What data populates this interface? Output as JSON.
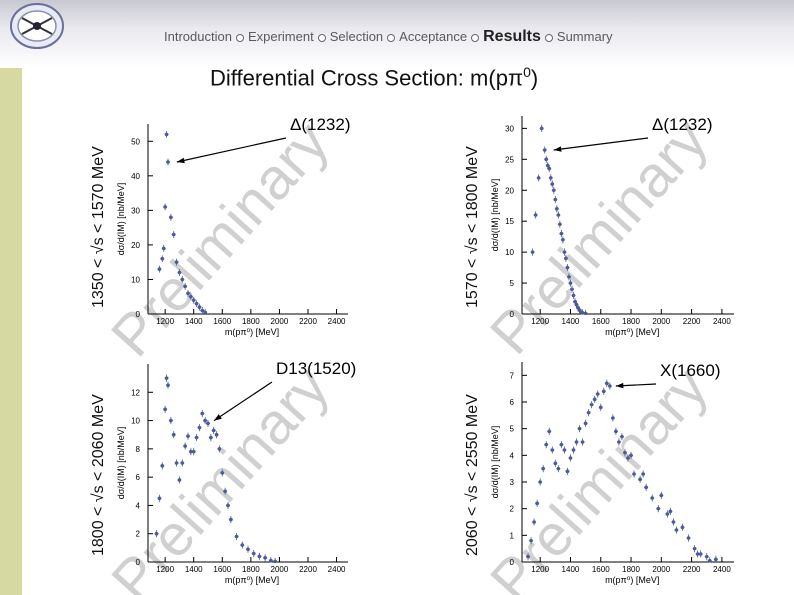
{
  "header": {
    "nav": [
      {
        "label": "Introduction",
        "active": false
      },
      {
        "label": "Experiment",
        "active": false
      },
      {
        "label": "Selection",
        "active": false
      },
      {
        "label": "Acceptance",
        "active": false
      },
      {
        "label": "Results",
        "active": true
      },
      {
        "label": "Summary",
        "active": false
      }
    ],
    "logo_icon": "experiment-logo-icon"
  },
  "title": {
    "text": "Differential Cross Section: m(pπ",
    "sup": "0",
    "close": ")"
  },
  "row_labels": {
    "top_left": "1350 < √s < 1570 MeV",
    "top_right": "1570 < √s < 1800 MeV",
    "bottom_left": "1800 < √s < 2060 MeV",
    "bottom_right": "2060 < √s < 2550 MeV"
  },
  "colors": {
    "points": "#4a5a9a",
    "errors": "#4a5a9a",
    "watermark": "#d0d0d0",
    "sidebar": "#d6d9a2"
  },
  "chart_data": [
    {
      "type": "scatter",
      "panel": "top_left",
      "xlabel": "m(pπ⁰) [MeV]",
      "ylabel": "dσ/d(IM) [nb/MeV]",
      "xlim": [
        1080,
        2480
      ],
      "ylim": [
        0,
        55
      ],
      "xticks": [
        1200,
        1400,
        1600,
        1800,
        2000,
        2200,
        2400
      ],
      "yticks": [
        0,
        10,
        20,
        30,
        40,
        50
      ],
      "watermark": "Preliminary",
      "annotation": {
        "text": "Δ(1232)",
        "x": 1240,
        "y": 44
      },
      "x": [
        1160,
        1180,
        1190,
        1200,
        1210,
        1220,
        1240,
        1260,
        1280,
        1300,
        1320,
        1340,
        1360,
        1380,
        1400,
        1420,
        1440,
        1460,
        1480
      ],
      "y": [
        13,
        16,
        19,
        31,
        52,
        44,
        28,
        23,
        15,
        12,
        10,
        8,
        6,
        5,
        4,
        3,
        2,
        1,
        0.5
      ]
    },
    {
      "type": "scatter",
      "panel": "top_right",
      "xlabel": "m(pπ⁰) [MeV]",
      "ylabel": "dσ/d(IM) [nb/MeV]",
      "xlim": [
        1080,
        2480
      ],
      "ylim": [
        0,
        32
      ],
      "xticks": [
        1200,
        1400,
        1600,
        1800,
        2000,
        2200,
        2400
      ],
      "yticks": [
        0,
        5,
        10,
        15,
        20,
        25,
        30
      ],
      "watermark": "Preliminary",
      "annotation": {
        "text": "Δ(1232)",
        "x": 1250,
        "y": 26.5
      },
      "x": [
        1150,
        1170,
        1190,
        1210,
        1230,
        1240,
        1250,
        1260,
        1270,
        1280,
        1290,
        1300,
        1310,
        1320,
        1330,
        1340,
        1350,
        1360,
        1370,
        1380,
        1390,
        1400,
        1410,
        1420,
        1430,
        1440,
        1450,
        1460,
        1470,
        1480,
        1500
      ],
      "y": [
        10,
        16,
        22,
        30,
        26.5,
        25,
        24,
        23.5,
        22,
        21,
        20,
        18.5,
        17,
        16,
        14.5,
        13,
        12,
        10,
        9,
        7.5,
        6,
        5,
        4,
        3,
        2,
        1.5,
        1,
        0.6,
        0.3,
        0.2,
        0.1
      ]
    },
    {
      "type": "scatter",
      "panel": "bottom_left",
      "xlabel": "m(pπ⁰) [MeV]",
      "ylabel": "dσ/d(IM) [nb/MeV]",
      "xlim": [
        1080,
        2480
      ],
      "ylim": [
        0,
        14
      ],
      "xticks": [
        1200,
        1400,
        1600,
        1800,
        2000,
        2200,
        2400
      ],
      "yticks": [
        0,
        2,
        4,
        6,
        8,
        10,
        12
      ],
      "watermark": "Preliminary",
      "annotation": {
        "text": "D13(1520)",
        "x": 1500,
        "y": 10
      },
      "x": [
        1140,
        1160,
        1180,
        1200,
        1210,
        1220,
        1240,
        1260,
        1280,
        1300,
        1320,
        1340,
        1360,
        1380,
        1400,
        1420,
        1440,
        1460,
        1480,
        1500,
        1520,
        1540,
        1560,
        1580,
        1600,
        1620,
        1640,
        1660,
        1700,
        1740,
        1780,
        1820,
        1860,
        1900,
        1940,
        1970
      ],
      "y": [
        2,
        4.5,
        6.8,
        10.8,
        13,
        12.5,
        10,
        9,
        7,
        5.8,
        7,
        8.2,
        8.9,
        7.8,
        7.8,
        8.8,
        9.5,
        10.5,
        10,
        9.8,
        8.8,
        9.3,
        9,
        8,
        6.3,
        5,
        4,
        3,
        1.8,
        1.2,
        0.9,
        0.6,
        0.4,
        0.3,
        0.1,
        0.05
      ]
    },
    {
      "type": "scatter",
      "panel": "bottom_right",
      "xlabel": "m(pπ⁰) [MeV]",
      "ylabel": "dσ/d(IM) [nb/MeV]",
      "xlim": [
        1080,
        2480
      ],
      "ylim": [
        0,
        7.5
      ],
      "xticks": [
        1200,
        1400,
        1600,
        1800,
        2000,
        2200,
        2400
      ],
      "yticks": [
        0,
        1,
        2,
        3,
        4,
        5,
        6,
        7
      ],
      "watermark": "Preliminary",
      "annotation": {
        "text": "X(1660)",
        "x": 1660,
        "y": 6.6
      },
      "x": [
        1120,
        1140,
        1160,
        1180,
        1200,
        1220,
        1240,
        1260,
        1280,
        1300,
        1320,
        1340,
        1360,
        1380,
        1400,
        1420,
        1440,
        1460,
        1480,
        1500,
        1520,
        1540,
        1560,
        1580,
        1600,
        1620,
        1640,
        1660,
        1680,
        1700,
        1720,
        1740,
        1760,
        1780,
        1800,
        1820,
        1860,
        1880,
        1900,
        1940,
        1980,
        2000,
        2040,
        2060,
        2080,
        2100,
        2140,
        2180,
        2220,
        2240,
        2260,
        2300,
        2320,
        2360
      ],
      "y": [
        0.2,
        0.8,
        1.5,
        2.2,
        3.0,
        3.5,
        4.4,
        4.9,
        4.2,
        3.7,
        3.5,
        4.4,
        4.2,
        3.4,
        3.9,
        4.2,
        4.5,
        5.0,
        4.5,
        5.2,
        5.6,
        5.9,
        6.1,
        6.3,
        5.8,
        6.4,
        6.7,
        6.6,
        5.4,
        4.9,
        4.5,
        4.7,
        4.1,
        3.9,
        4.0,
        3.3,
        3.1,
        3.3,
        2.8,
        2.4,
        2.0,
        2.5,
        1.8,
        1.9,
        1.5,
        1.2,
        1.3,
        0.9,
        0.5,
        0.3,
        0.3,
        0.2,
        0.05,
        0.1
      ]
    }
  ]
}
